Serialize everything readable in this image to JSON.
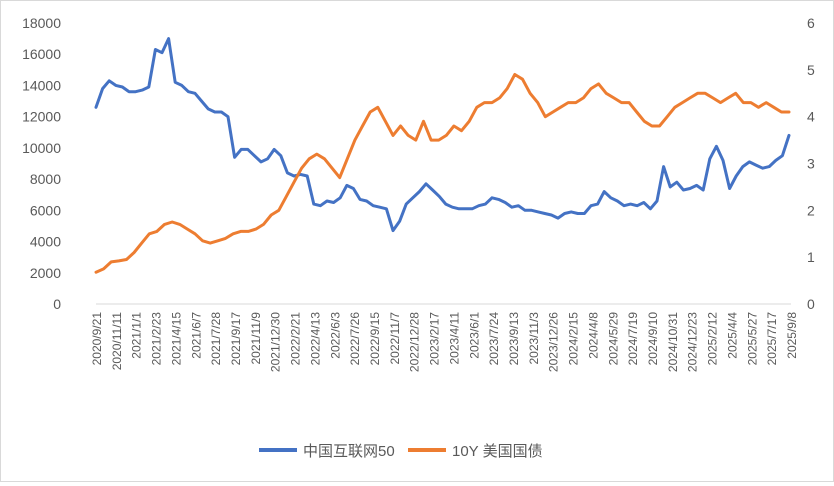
{
  "chart_data": {
    "type": "line",
    "title": "",
    "xlabel": "",
    "ylabel": "",
    "y_left_lim": [
      0,
      18000
    ],
    "y_left_ticks": [
      0,
      2000,
      4000,
      6000,
      8000,
      10000,
      12000,
      14000,
      16000,
      18000
    ],
    "y_right_lim": [
      0,
      6
    ],
    "y_right_ticks": [
      0,
      1,
      2,
      3,
      4,
      5,
      6
    ],
    "grid": false,
    "legend_position": "bottom",
    "x_ticks": [
      "2020/9/21",
      "2020/11/11",
      "2021/1/1",
      "2021/2/23",
      "2021/4/15",
      "2021/6/7",
      "2021/7/28",
      "2021/9/17",
      "2021/11/9",
      "2021/12/30",
      "2022/2/21",
      "2022/4/13",
      "2022/6/3",
      "2022/7/26",
      "2022/9/15",
      "2022/11/7",
      "2022/12/28",
      "2023/2/17",
      "2023/4/11",
      "2023/6/1",
      "2023/7/24",
      "2023/9/13",
      "2023/11/3",
      "2023/12/26",
      "2024/2/15",
      "2024/4/8",
      "2024/5/29",
      "2024/7/19",
      "2024/9/10",
      "2024/10/31",
      "2024/12/23",
      "2025/2/12",
      "2025/4/4",
      "2025/5/27",
      "2025/7/17",
      "2025/9/8"
    ],
    "series": [
      {
        "name": "中国互联网50",
        "axis": "left",
        "color": "#4472c4",
        "values": [
          12600,
          13800,
          14300,
          14000,
          13900,
          13600,
          13600,
          13700,
          13900,
          16300,
          16100,
          17000,
          14200,
          14000,
          13600,
          13500,
          13000,
          12500,
          12300,
          12300,
          12000,
          9400,
          9900,
          9900,
          9500,
          9100,
          9300,
          9900,
          9500,
          8400,
          8200,
          8300,
          8200,
          6400,
          6300,
          6600,
          6500,
          6800,
          7600,
          7400,
          6700,
          6600,
          6300,
          6200,
          6100,
          4700,
          5300,
          6400,
          6800,
          7200,
          7700,
          7300,
          6900,
          6400,
          6200,
          6100,
          6100,
          6100,
          6300,
          6400,
          6800,
          6700,
          6500,
          6200,
          6300,
          6000,
          6000,
          5900,
          5800,
          5700,
          5500,
          5800,
          5900,
          5800,
          5800,
          6300,
          6400,
          7200,
          6800,
          6600,
          6300,
          6400,
          6300,
          6500,
          6100,
          6600,
          8800,
          7500,
          7800,
          7300,
          7400,
          7600,
          7300,
          9300,
          10100,
          9200,
          7400,
          8200,
          8800,
          9100,
          8900,
          8700,
          8800,
          9200,
          9500,
          10800
        ]
      },
      {
        "name": "10Y  美国国债",
        "axis": "right",
        "color": "#ed7d31",
        "values": [
          0.68,
          0.75,
          0.9,
          0.92,
          0.95,
          1.1,
          1.3,
          1.5,
          1.55,
          1.7,
          1.75,
          1.7,
          1.6,
          1.5,
          1.35,
          1.3,
          1.35,
          1.4,
          1.5,
          1.55,
          1.55,
          1.6,
          1.7,
          1.9,
          2.0,
          2.3,
          2.6,
          2.9,
          3.1,
          3.2,
          3.1,
          2.9,
          2.7,
          3.1,
          3.5,
          3.8,
          4.1,
          4.2,
          3.9,
          3.6,
          3.8,
          3.6,
          3.5,
          3.9,
          3.5,
          3.5,
          3.6,
          3.8,
          3.7,
          3.9,
          4.2,
          4.3,
          4.3,
          4.4,
          4.6,
          4.9,
          4.8,
          4.5,
          4.3,
          4.0,
          4.1,
          4.2,
          4.3,
          4.3,
          4.4,
          4.6,
          4.7,
          4.5,
          4.4,
          4.3,
          4.3,
          4.1,
          3.9,
          3.8,
          3.8,
          4.0,
          4.2,
          4.3,
          4.4,
          4.5,
          4.5,
          4.4,
          4.3,
          4.4,
          4.5,
          4.3,
          4.3,
          4.2,
          4.3,
          4.2,
          4.1,
          4.1
        ]
      }
    ]
  }
}
